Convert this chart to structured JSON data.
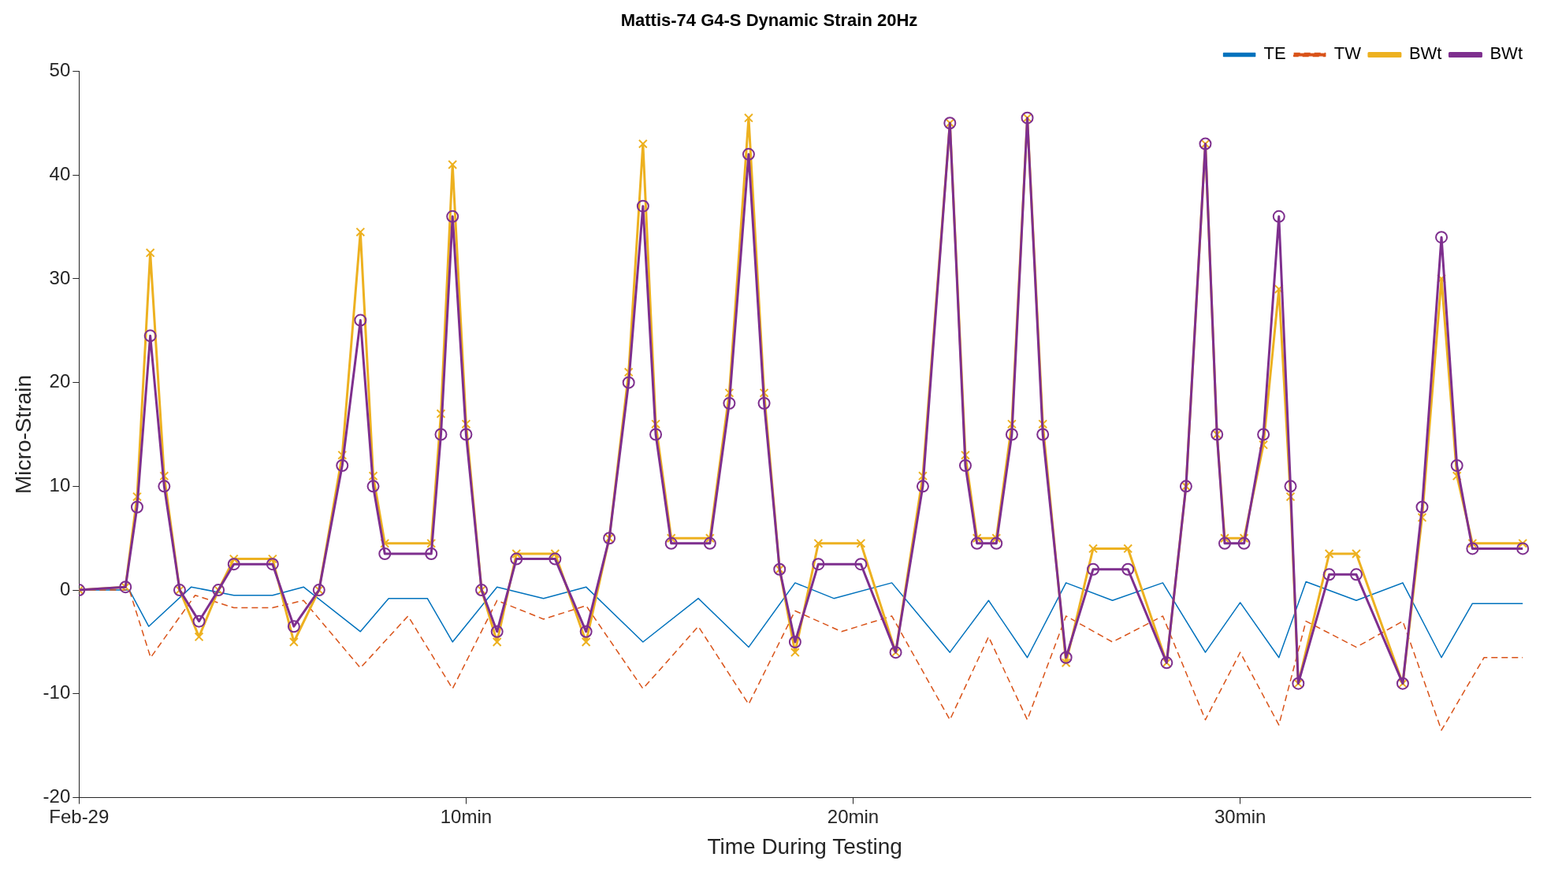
{
  "chart_data": {
    "type": "line",
    "title": "Mattis-74 G4-S Dynamic Strain 20Hz",
    "xlabel": "Time During Testing",
    "ylabel": "Micro-Strain",
    "xlim": [
      0,
      37.5
    ],
    "xticks": [
      {
        "value": 0,
        "label": "Feb-29"
      },
      {
        "value": 10,
        "label": "10min"
      },
      {
        "value": 20,
        "label": "20min"
      },
      {
        "value": 30,
        "label": "30min"
      }
    ],
    "ylim": [
      -20,
      50
    ],
    "yticks": [
      -20,
      -10,
      0,
      10,
      20,
      30,
      40,
      50
    ],
    "grid": false,
    "legend": "top right",
    "series": [
      {
        "name": "TE",
        "color": "#0072bd",
        "line_style": "solid",
        "marker": "none",
        "x": [
          0,
          1.3,
          1.8,
          2.9,
          4,
          5,
          5.8,
          7.27,
          8,
          9,
          9.65,
          10.8,
          12,
          13.1,
          14.57,
          16,
          17.3,
          18.5,
          19.5,
          21,
          22.5,
          23.5,
          24.5,
          25.5,
          26.7,
          28,
          29.1,
          30,
          31,
          31.7,
          33,
          34.2,
          35.2,
          36,
          37.3
        ],
        "values": [
          0,
          0,
          -3.5,
          0.3,
          -0.5,
          -0.5,
          0.3,
          -4,
          -0.8,
          -0.8,
          -5,
          0.3,
          -0.8,
          0.3,
          -5,
          -0.8,
          -5.5,
          0.7,
          -0.8,
          0.7,
          -6,
          -1,
          -6.5,
          0.7,
          -1,
          0.7,
          -6,
          -1.2,
          -6.5,
          0.8,
          -1,
          0.7,
          -6.5,
          -1.3,
          -1.3
        ]
      },
      {
        "name": "TW",
        "color": "#d95319",
        "line_style": "dashed",
        "marker": "none",
        "x": [
          0,
          1.3,
          1.85,
          3,
          4,
          5,
          5.8,
          7.27,
          8.5,
          9.65,
          10.8,
          12,
          13.1,
          14.57,
          16,
          17.3,
          18.5,
          19.7,
          21,
          22.5,
          23.5,
          24.5,
          25.5,
          26.7,
          28,
          29.1,
          30,
          31,
          31.7,
          33,
          34.2,
          35.2,
          36.3,
          37.3
        ],
        "values": [
          0,
          0,
          -6.5,
          -0.5,
          -1.7,
          -1.7,
          -1,
          -7.5,
          -2.5,
          -9.5,
          -1,
          -2.8,
          -1.5,
          -9.5,
          -3.5,
          -11,
          -2,
          -4,
          -2.5,
          -12.5,
          -4.5,
          -12.5,
          -2.5,
          -5,
          -2.5,
          -12.5,
          -6,
          -13,
          -3,
          -5.5,
          -3,
          -13.5,
          -6.5,
          -6.5
        ]
      },
      {
        "name": "BWt",
        "color": "#edb120",
        "line_style": "solid",
        "marker": "cross",
        "x": [
          0,
          1.2,
          1.5,
          1.84,
          2.2,
          2.6,
          3.1,
          3.6,
          4,
          5,
          5.55,
          6.2,
          6.8,
          7.27,
          7.6,
          7.9,
          9.1,
          9.35,
          9.65,
          10,
          10.4,
          10.8,
          11.3,
          12.3,
          13.1,
          13.7,
          14.2,
          14.57,
          14.9,
          15.3,
          16.3,
          16.8,
          17.3,
          17.7,
          18.1,
          18.5,
          19.1,
          20.2,
          21.1,
          21.8,
          22.5,
          22.9,
          23.2,
          23.7,
          24.1,
          24.5,
          24.9,
          25.5,
          26.2,
          27.1,
          28.1,
          28.6,
          29.1,
          29.4,
          29.6,
          30.1,
          30.6,
          31,
          31.3,
          31.5,
          32.3,
          33,
          34.2,
          34.7,
          35.2,
          35.6,
          36,
          37.3
        ],
        "values": [
          0,
          0.3,
          9,
          32.5,
          11,
          0,
          -4.5,
          0,
          3,
          3,
          -5,
          0,
          13,
          34.5,
          11,
          4.5,
          4.5,
          17,
          41,
          16,
          0,
          -5,
          3.5,
          3.5,
          -5,
          5,
          21,
          43,
          16,
          5,
          5,
          19,
          45.5,
          19,
          2,
          -6,
          4.5,
          4.5,
          -6,
          11,
          45,
          13,
          5,
          5,
          16,
          45.5,
          16,
          -7,
          4,
          4,
          -7,
          10,
          43,
          15,
          5,
          5,
          14,
          29,
          9,
          -9,
          3.5,
          3.5,
          -9,
          7,
          30,
          11,
          4.5,
          4.5
        ]
      },
      {
        "name": "BWt",
        "color": "#7e2f8e",
        "line_style": "solid",
        "marker": "circle",
        "x": [
          0,
          1.2,
          1.5,
          1.84,
          2.2,
          2.6,
          3.1,
          3.6,
          4,
          5,
          5.55,
          6.2,
          6.8,
          7.27,
          7.6,
          7.9,
          9.1,
          9.35,
          9.65,
          10,
          10.4,
          10.8,
          11.3,
          12.3,
          13.1,
          13.7,
          14.2,
          14.57,
          14.9,
          15.3,
          16.3,
          16.8,
          17.3,
          17.7,
          18.1,
          18.5,
          19.1,
          20.2,
          21.1,
          21.8,
          22.5,
          22.9,
          23.2,
          23.7,
          24.1,
          24.5,
          24.9,
          25.5,
          26.2,
          27.1,
          28.1,
          28.6,
          29.1,
          29.4,
          29.6,
          30.1,
          30.6,
          31,
          31.3,
          31.5,
          32.3,
          33,
          34.2,
          34.7,
          35.2,
          35.6,
          36,
          37.3
        ],
        "values": [
          0,
          0.3,
          8,
          24.5,
          10,
          0,
          -3,
          0,
          2.5,
          2.5,
          -3.5,
          0,
          12,
          26,
          10,
          3.5,
          3.5,
          15,
          36,
          15,
          0,
          -4,
          3,
          3,
          -4,
          5,
          20,
          37,
          15,
          4.5,
          4.5,
          18,
          42,
          18,
          2,
          -5,
          2.5,
          2.5,
          -6,
          10,
          45,
          12,
          4.5,
          4.5,
          15,
          45.5,
          15,
          -6.5,
          2,
          2,
          -7,
          10,
          43,
          15,
          4.5,
          4.5,
          15,
          36,
          10,
          -9,
          1.5,
          1.5,
          -9,
          8,
          34,
          12,
          4,
          4
        ]
      }
    ]
  }
}
